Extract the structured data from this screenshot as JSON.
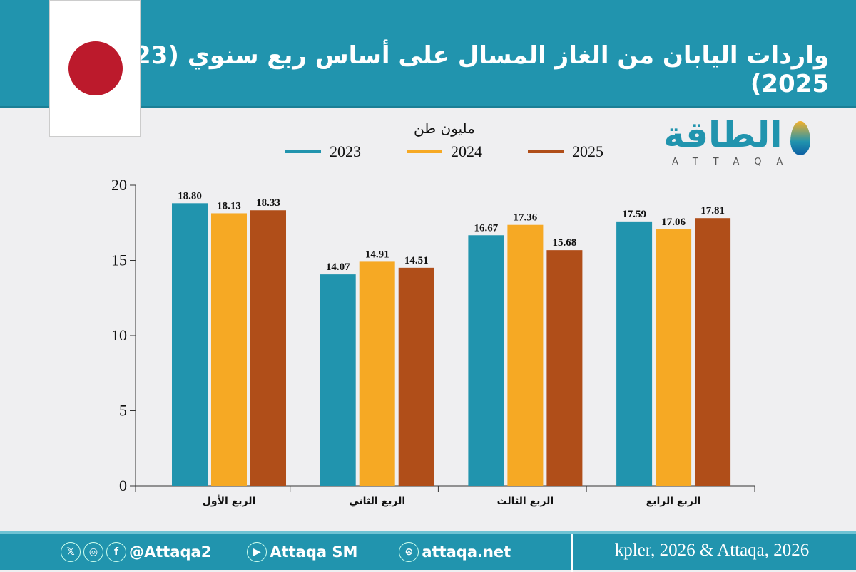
{
  "header": {
    "title": "واردات اليابان من الغاز المسال على أساس ربع سنوي (2023 - 2025)"
  },
  "logo": {
    "arabic": "الطاقة",
    "latin": "ATTAQA"
  },
  "footer": {
    "x_handle": "@Attaqa2",
    "youtube": "Attaqa SM",
    "website": "attaqa.net",
    "source": "kpler, 2026 & Attaqa, 2026",
    "icons": [
      "x-icon",
      "instagram-icon",
      "facebook-icon",
      "youtube-icon",
      "globe-icon"
    ]
  },
  "chart_data": {
    "type": "bar",
    "title": "واردات اليابان من الغاز المسال على أساس ربع سنوي (2023 - 2025)",
    "ylabel": "مليون طن",
    "categories": [
      "الربع الأول",
      "الربع الثاني",
      "الربع الثالث",
      "الربع الرابع"
    ],
    "series": [
      {
        "name": "2023",
        "color": "#2194ae",
        "values": [
          18.8,
          14.07,
          16.67,
          17.59
        ]
      },
      {
        "name": "2024",
        "color": "#f6a924",
        "values": [
          18.13,
          14.91,
          17.36,
          17.06
        ]
      },
      {
        "name": "2025",
        "color": "#b04e19",
        "values": [
          18.33,
          14.51,
          15.68,
          17.81
        ]
      }
    ],
    "yticks": [
      0,
      5,
      10,
      15,
      20
    ],
    "ylim": [
      0,
      20
    ],
    "legend": "top",
    "grid": false
  }
}
